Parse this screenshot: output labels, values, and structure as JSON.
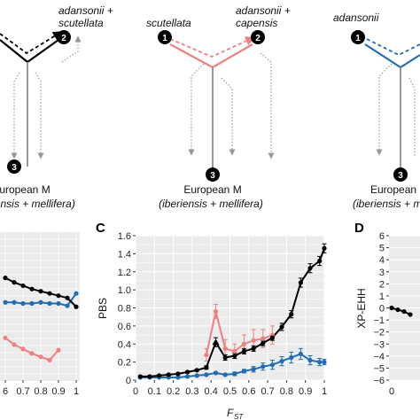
{
  "colors": {
    "black": "#000000",
    "pink": "#f08080",
    "blue": "#1f6db5",
    "gray": "#999999",
    "gridbg": "#ebebeb"
  },
  "diagrams": [
    {
      "top_left_label": "",
      "top_right_label_1": "adansonii +",
      "top_right_label_2": "scutellata",
      "node_top_left": "",
      "node_top_right": "2",
      "node_bottom": "3",
      "bottom_label_1": "European M",
      "bottom_label_2": "iberiensis + mellifera)",
      "color": "black"
    },
    {
      "top_left_label": "scutellata",
      "top_right_label_1": "adansonii +",
      "top_right_label_2": "capensis",
      "node_top_left": "1",
      "node_top_right": "2",
      "node_bottom": "3",
      "bottom_label_1": "European M",
      "bottom_label_2": "(iberiensis + mellifera)",
      "color": "pink"
    },
    {
      "top_left_label": "adansonii",
      "top_right_label_1": "",
      "top_right_label_2": "",
      "node_top_left": "1",
      "node_top_right": "",
      "node_bottom": "3",
      "bottom_label_1": "European",
      "bottom_label_2": "(iberiensis + melli",
      "color": "blue"
    }
  ],
  "panels": {
    "C": "C",
    "D": "D"
  },
  "chart_data": [
    {
      "type": "line",
      "panel": "B (partial)",
      "xtick_labels": [
        "6",
        "0.7",
        "0.8",
        "0.9",
        "1"
      ],
      "x": [
        0.6,
        0.65,
        0.7,
        0.75,
        0.8,
        0.85,
        0.9,
        0.95,
        1.0
      ],
      "series": [
        {
          "color": "black",
          "values": [
            0.62,
            0.58,
            0.55,
            0.52,
            0.5,
            0.48,
            0.46,
            0.44,
            0.36
          ]
        },
        {
          "color": "blue",
          "values": [
            0.4,
            0.4,
            0.39,
            0.39,
            0.4,
            0.39,
            0.39,
            0.37,
            0.48
          ]
        },
        {
          "color": "pink",
          "values": [
            0.08,
            0.02,
            -0.02,
            -0.06,
            -0.09,
            -0.12,
            -0.03,
            null,
            null
          ]
        }
      ]
    },
    {
      "type": "line",
      "panel": "C",
      "xlabel": "F",
      "xlabel_sub": "ST",
      "ylabel": "PBS",
      "xlim": [
        0,
        1
      ],
      "ylim": [
        0,
        1.6
      ],
      "xticks": [
        0,
        0.1,
        0.2,
        0.3,
        0.4,
        0.5,
        0.6,
        0.7,
        0.8,
        0.9,
        1
      ],
      "xtick_labels": [
        "0",
        "0.1",
        "0.2",
        "0.3",
        "0.4",
        "0.5",
        "0.6",
        "0.7",
        "0.8",
        "0.9",
        "1"
      ],
      "yticks": [
        0,
        0.2,
        0.4,
        0.6,
        0.8,
        1.0,
        1.2,
        1.4,
        1.6
      ],
      "ytick_labels": [
        "0",
        "0.2",
        "0.4",
        "0.6",
        "0.8",
        "1.0",
        "1.2",
        "1.4",
        "1.6"
      ],
      "x": [
        0.025,
        0.075,
        0.125,
        0.175,
        0.225,
        0.275,
        0.325,
        0.375,
        0.425,
        0.475,
        0.525,
        0.575,
        0.625,
        0.675,
        0.725,
        0.775,
        0.825,
        0.875,
        0.925,
        0.975,
        1.0
      ],
      "series": [
        {
          "color": "black",
          "values": [
            0.04,
            0.04,
            0.05,
            0.06,
            0.07,
            0.09,
            0.11,
            0.14,
            0.42,
            0.25,
            0.27,
            0.32,
            0.35,
            0.41,
            0.47,
            0.59,
            0.73,
            1.08,
            1.24,
            1.32,
            1.46
          ],
          "errors": [
            0.01,
            0.01,
            0.01,
            0.01,
            0.01,
            0.01,
            0.01,
            0.02,
            0.05,
            0.03,
            0.03,
            0.03,
            0.03,
            0.03,
            0.03,
            0.04,
            0.04,
            0.05,
            0.05,
            0.05,
            0.05
          ]
        },
        {
          "color": "pink",
          "values": [
            null,
            null,
            null,
            null,
            null,
            null,
            null,
            0.28,
            0.76,
            0.35,
            0.32,
            0.4,
            0.44,
            0.46,
            0.5,
            null,
            null,
            null,
            null,
            null,
            null
          ],
          "errors": [
            null,
            null,
            null,
            null,
            null,
            null,
            null,
            0.07,
            0.08,
            0.1,
            0.08,
            0.1,
            0.12,
            0.1,
            0.1,
            null,
            null,
            null,
            null,
            null,
            null
          ]
        },
        {
          "color": "blue",
          "values": [
            0.03,
            0.03,
            0.03,
            0.03,
            0.03,
            0.04,
            0.05,
            0.06,
            0.08,
            0.06,
            0.07,
            0.1,
            0.12,
            0.15,
            0.17,
            0.21,
            0.25,
            0.29,
            0.22,
            0.2,
            0.2
          ],
          "errors": [
            0.005,
            0.005,
            0.005,
            0.005,
            0.005,
            0.01,
            0.01,
            0.01,
            0.01,
            0.01,
            0.02,
            0.02,
            0.03,
            0.04,
            0.05,
            0.05,
            0.06,
            0.06,
            0.05,
            0.04,
            0.03
          ]
        }
      ]
    },
    {
      "type": "line",
      "panel": "D (partial)",
      "ylabel": "XP-EHH",
      "ylim": [
        -6,
        6
      ],
      "yticks": [
        6,
        5,
        4,
        3,
        2,
        1,
        0,
        -1,
        -2,
        -3,
        -4,
        -5,
        -6
      ],
      "ytick_labels": [
        "6",
        "5",
        "4",
        "3",
        "2",
        "1",
        "0",
        "−1",
        "−2",
        "−3",
        "−4",
        "−5",
        "−6"
      ],
      "xtick_labels": [
        "0"
      ],
      "series": [
        {
          "color": "black",
          "x": [
            0,
            0.5,
            1.0,
            1.5
          ],
          "values": [
            0,
            -0.15,
            -0.3,
            -0.55
          ]
        }
      ]
    }
  ]
}
